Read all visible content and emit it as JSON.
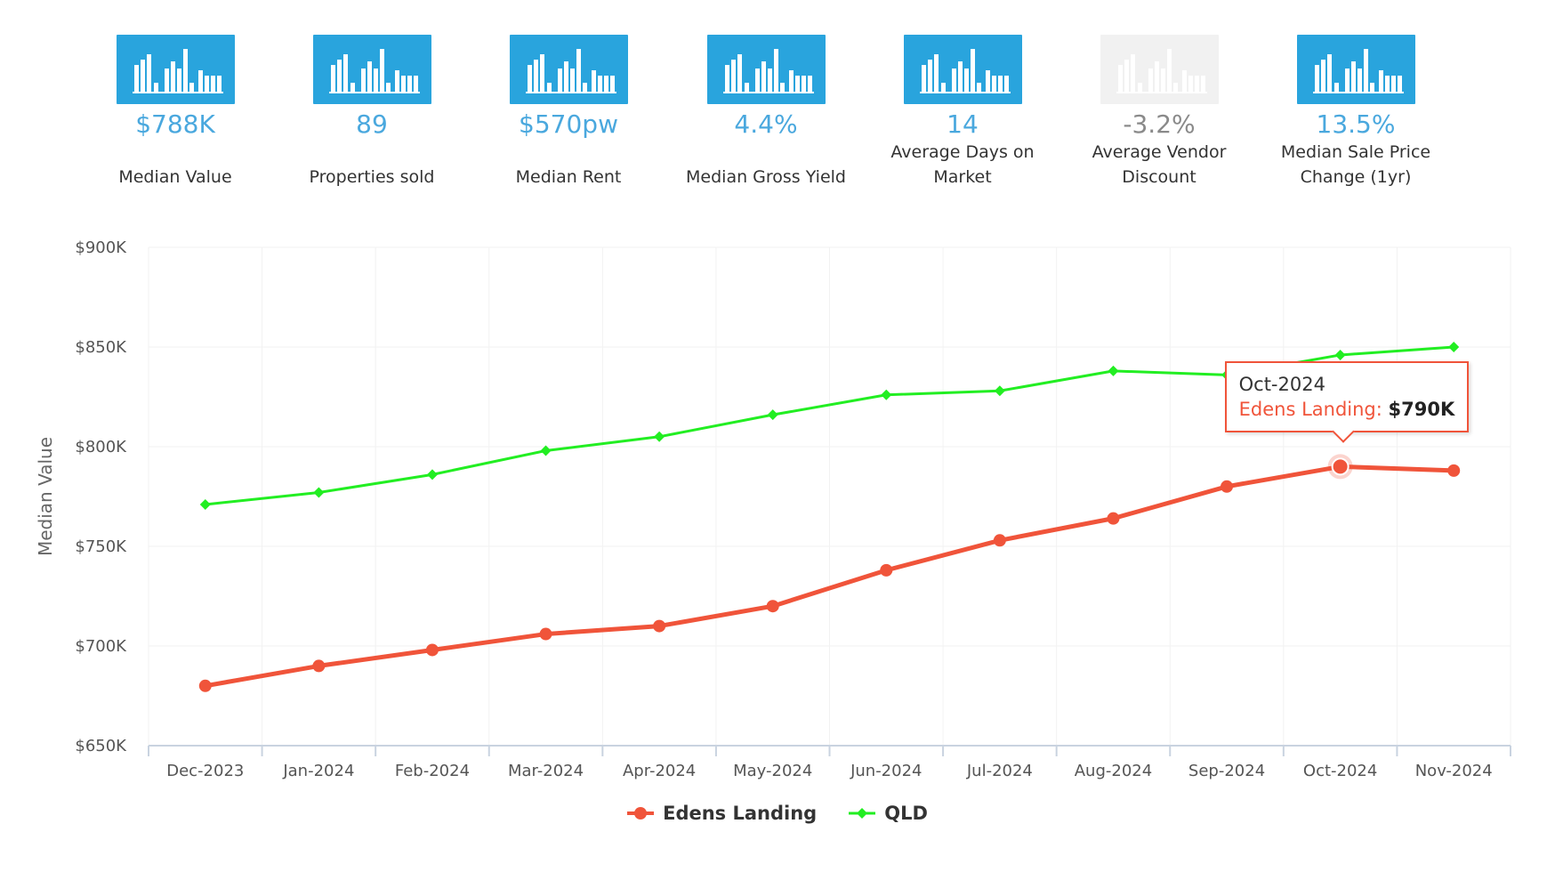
{
  "stats": [
    {
      "value": "$788K",
      "label": "Median Value",
      "enabled": true
    },
    {
      "value": "89",
      "label": "Properties sold",
      "enabled": true
    },
    {
      "value": "$570pw",
      "label": "Median Rent",
      "enabled": true
    },
    {
      "value": "4.4%",
      "label": "Median Gross Yield",
      "enabled": true
    },
    {
      "value": "14",
      "label": "Average Days on Market",
      "enabled": true
    },
    {
      "value": "-3.2%",
      "label": "Average Vendor Discount",
      "enabled": false
    },
    {
      "value": "13.5%",
      "label": "Median Sale Price Change (1yr)",
      "enabled": true
    }
  ],
  "icons": {
    "stat_tile": "bar-chart-icon"
  },
  "colors": {
    "tile": "#29a4dd",
    "tile_disabled": "#f1f1f1",
    "value": "#4aa8de",
    "value_muted": "#8a8a8a",
    "edens": "#f0543a",
    "qld": "#22ee22"
  },
  "tooltip": {
    "title": "Oct-2024",
    "series": "Edens Landing",
    "value": "$790K"
  },
  "chart_data": {
    "type": "line",
    "ylabel": "Median Value",
    "ylim": [
      650000,
      900000
    ],
    "yticks": [
      650000,
      700000,
      750000,
      800000,
      850000,
      900000
    ],
    "ytick_labels": [
      "$650K",
      "$700K",
      "$750K",
      "$800K",
      "$850K",
      "$900K"
    ],
    "categories": [
      "Dec-2023",
      "Jan-2024",
      "Feb-2024",
      "Mar-2024",
      "Apr-2024",
      "May-2024",
      "Jun-2024",
      "Jul-2024",
      "Aug-2024",
      "Sep-2024",
      "Oct-2024",
      "Nov-2024"
    ],
    "series": [
      {
        "name": "Edens Landing",
        "marker": "circle",
        "values": [
          680000,
          690000,
          698000,
          706000,
          710000,
          720000,
          738000,
          753000,
          764000,
          780000,
          790000,
          788000
        ]
      },
      {
        "name": "QLD",
        "marker": "diamond",
        "values": [
          771000,
          777000,
          786000,
          798000,
          805000,
          816000,
          826000,
          828000,
          838000,
          836000,
          846000,
          850000
        ]
      }
    ],
    "legend_position": "bottom-center",
    "grid": true,
    "highlight": {
      "series": 0,
      "index": 10
    }
  }
}
